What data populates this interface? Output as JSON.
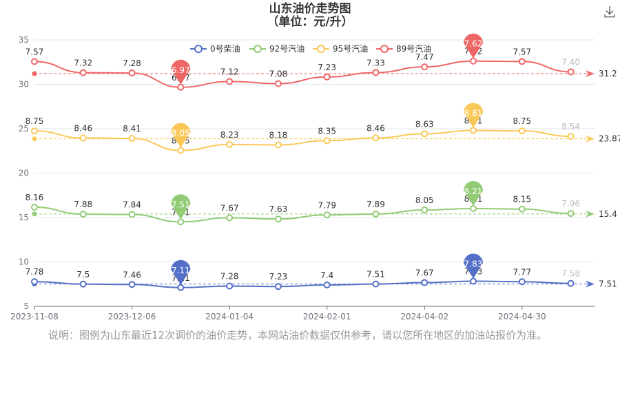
{
  "title": {
    "line1": "山东油价走势图",
    "line2": "（单位：元/升）"
  },
  "toolbar": {
    "download_icon": "download-icon"
  },
  "note": "说明：图例为山东最近12次调价的油价走势，本网站油价数据仅供参考，请以您所在地区的加油站报价为准。",
  "chart_data": {
    "type": "line",
    "y_axis": {
      "min": 5,
      "max": 35,
      "ticks": [
        5,
        10,
        15,
        20,
        25,
        30,
        35
      ]
    },
    "x_axis": {
      "ticks": [
        "2023-11-08",
        "2023-12-06",
        "2024-01-04",
        "2024-02-01",
        "2024-04-02",
        "2024-04-30"
      ]
    },
    "legend": {
      "placement": "top-center",
      "items": [
        "0号柴油",
        "92号汽油",
        "95号汽油",
        "89号汽油"
      ]
    },
    "grid": "horizontal",
    "series": [
      {
        "name": "0号柴油",
        "color": "#5470c6",
        "labels": [
          "7.78",
          "7.5",
          "7.46",
          "7.11",
          "7.28",
          "7.23",
          "7.4",
          "7.51",
          "7.67",
          "7.83",
          "7.77",
          "7.58"
        ],
        "values": [
          7.78,
          7.5,
          7.46,
          7.11,
          7.28,
          7.23,
          7.4,
          7.51,
          7.67,
          7.83,
          7.77,
          7.58
        ],
        "plotted": [
          7.78,
          7.5,
          7.46,
          7.11,
          7.28,
          7.23,
          7.4,
          7.51,
          7.67,
          7.83,
          7.77,
          7.58
        ],
        "min_label": "7.11",
        "max_label": "7.83",
        "avg_label": "7.51",
        "avg": 7.51
      },
      {
        "name": "92号汽油",
        "color": "#91cc75",
        "labels": [
          "8.16",
          "7.88",
          "7.84",
          "7.51",
          "7.67",
          "7.63",
          "7.79",
          "7.89",
          "8.05",
          "8.21",
          "8.15",
          "7.96"
        ],
        "values": [
          8.16,
          7.88,
          7.84,
          7.51,
          7.67,
          7.63,
          7.79,
          7.89,
          8.05,
          8.21,
          8.15,
          7.96
        ],
        "plotted": [
          16.16,
          15.38,
          15.34,
          14.51,
          14.97,
          14.83,
          15.29,
          15.39,
          15.85,
          16.01,
          15.95,
          15.46
        ],
        "min_label": "7.51",
        "max_label": "8.21",
        "avg_label": "15.4",
        "avg": 15.4
      },
      {
        "name": "95号汽油",
        "color": "#fac858",
        "labels": [
          "8.75",
          "8.46",
          "8.41",
          "8.05",
          "8.23",
          "8.18",
          "8.35",
          "8.46",
          "8.63",
          "8.81",
          "8.75",
          "8.54"
        ],
        "values": [
          8.75,
          8.46,
          8.41,
          8.05,
          8.23,
          8.18,
          8.35,
          8.46,
          8.63,
          8.81,
          8.75,
          8.54
        ],
        "plotted": [
          24.75,
          23.96,
          23.91,
          22.55,
          23.23,
          23.18,
          23.65,
          23.96,
          24.43,
          24.81,
          24.75,
          24.14
        ],
        "min_label": "8.05",
        "max_label": "8.81",
        "avg_label": "23.87",
        "avg": 23.87
      },
      {
        "name": "89号汽油",
        "color": "#ee6666",
        "labels": [
          "7.57",
          "7.32",
          "7.28",
          "6.97",
          "7.12",
          "7.08",
          "7.23",
          "7.33",
          "7.47",
          "7.62",
          "7.57",
          "7.40"
        ],
        "values": [
          7.57,
          7.32,
          7.28,
          6.97,
          7.12,
          7.08,
          7.23,
          7.33,
          7.47,
          7.62,
          7.57,
          7.4
        ],
        "plotted": [
          32.57,
          31.32,
          31.28,
          29.67,
          30.32,
          30.08,
          30.83,
          31.33,
          31.97,
          32.62,
          32.57,
          31.4
        ],
        "min_label": "6.97",
        "max_label": "7.62",
        "avg_label": "31.2",
        "avg": 31.2
      }
    ],
    "min_index": 3,
    "max_index": 9
  }
}
